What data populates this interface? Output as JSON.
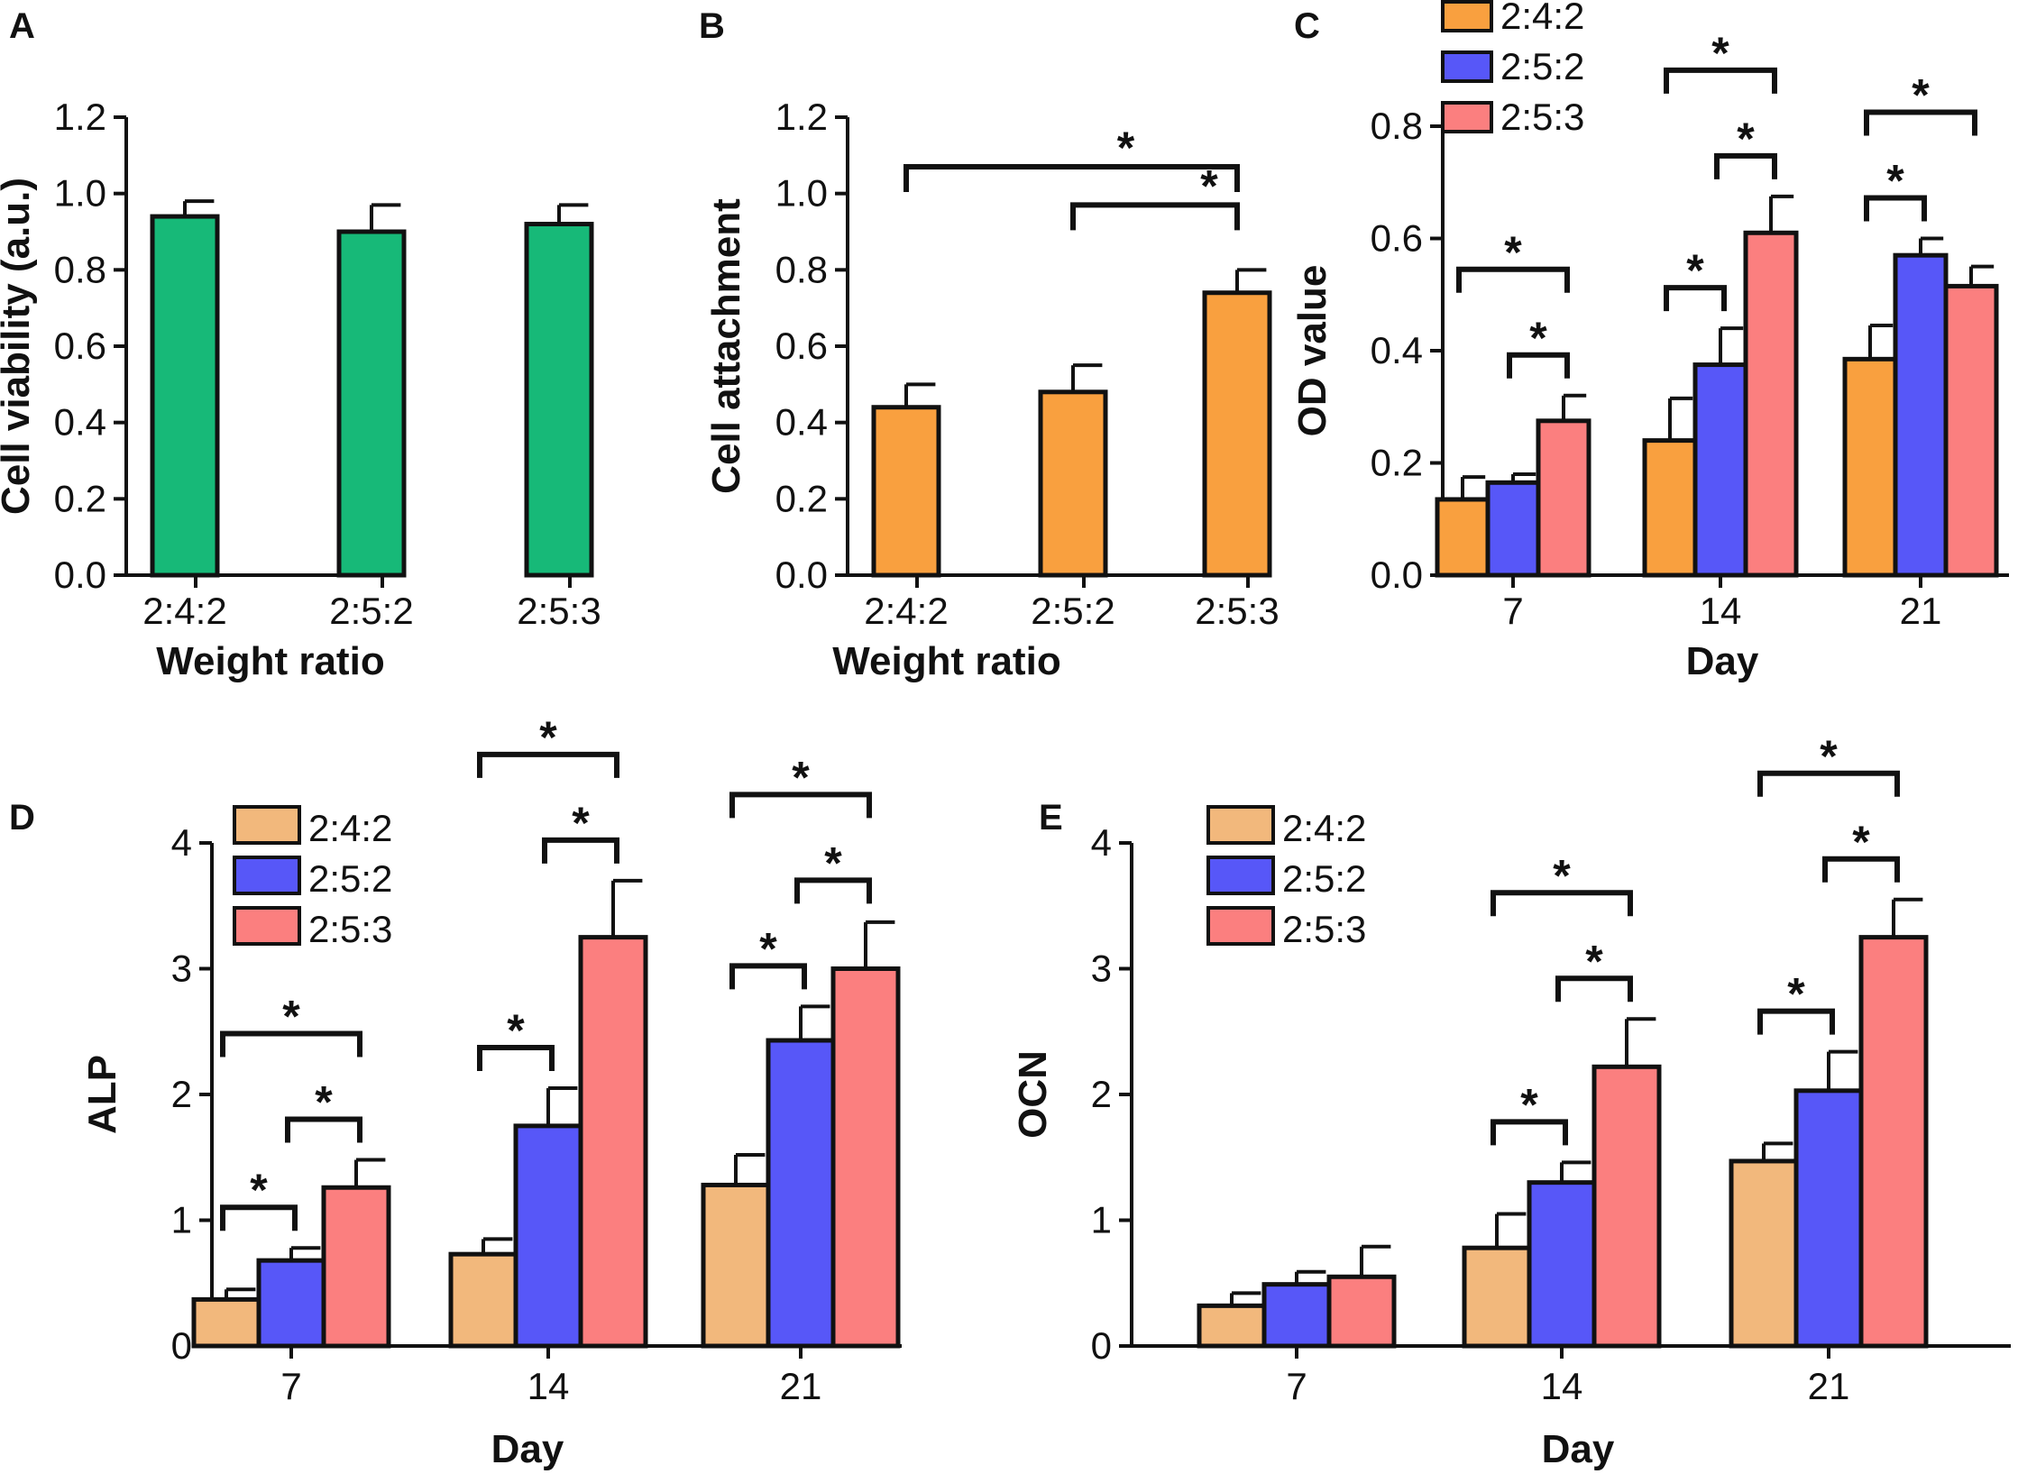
{
  "chart_data": [
    {
      "panel": "A",
      "type": "bar",
      "categories": [
        "2:4:2",
        "2:5:2",
        "2:5:3"
      ],
      "values": [
        0.94,
        0.9,
        0.92
      ],
      "errors": [
        0.04,
        0.07,
        0.05
      ],
      "colors": [
        "#17b978",
        "#17b978",
        "#17b978"
      ],
      "xlabel": "Weight ratio",
      "ylabel": "Cell viability (a.u.)",
      "ylim": [
        0,
        1.2
      ],
      "yticks": [
        "0.0",
        "0.2",
        "0.4",
        "0.6",
        "0.8",
        "1.0",
        "1.2"
      ],
      "significance": []
    },
    {
      "panel": "B",
      "type": "bar",
      "categories": [
        "2:4:2",
        "2:5:2",
        "2:5:3"
      ],
      "values": [
        0.44,
        0.48,
        0.74
      ],
      "errors": [
        0.06,
        0.07,
        0.06
      ],
      "colors": [
        "#f9a03f",
        "#f9a03f",
        "#f9a03f"
      ],
      "xlabel": "Weight ratio",
      "ylabel": "Cell attachment",
      "ylim": [
        0,
        1.2
      ],
      "yticks": [
        "0.0",
        "0.2",
        "0.4",
        "0.6",
        "0.8",
        "1.0",
        "1.2"
      ],
      "significance": [
        {
          "from": 0,
          "to": 2,
          "label": "*"
        },
        {
          "from": 1,
          "to": 2,
          "label": "*"
        }
      ]
    },
    {
      "panel": "C",
      "type": "grouped-bar",
      "categories": [
        "7",
        "14",
        "21"
      ],
      "series": [
        {
          "name": "2:4:2",
          "color": "#f9a03f",
          "values": [
            0.135,
            0.24,
            0.385
          ],
          "errors": [
            0.04,
            0.075,
            0.06
          ]
        },
        {
          "name": "2:5:2",
          "color": "#5757f8",
          "values": [
            0.165,
            0.375,
            0.57
          ],
          "errors": [
            0.015,
            0.065,
            0.03
          ]
        },
        {
          "name": "2:5:3",
          "color": "#fb7f7f",
          "values": [
            0.275,
            0.61,
            0.515
          ],
          "errors": [
            0.045,
            0.065,
            0.035
          ]
        }
      ],
      "xlabel": "Day",
      "ylabel": "OD value",
      "ylim": [
        0,
        0.8
      ],
      "yticks": [
        "0.0",
        "0.2",
        "0.4",
        "0.6",
        "0.8"
      ],
      "legend_position": "top-left",
      "significance": [
        {
          "group": 0,
          "from": 0,
          "to": 2,
          "label": "*"
        },
        {
          "group": 0,
          "from": 1,
          "to": 2,
          "label": "*"
        },
        {
          "group": 1,
          "from": 0,
          "to": 1,
          "label": "*"
        },
        {
          "group": 1,
          "from": 1,
          "to": 2,
          "label": "*"
        },
        {
          "group": 1,
          "from": 0,
          "to": 2,
          "label": "*"
        },
        {
          "group": 2,
          "from": 0,
          "to": 1,
          "label": "*"
        },
        {
          "group": 2,
          "from": 0,
          "to": 2,
          "label": "*"
        }
      ]
    },
    {
      "panel": "D",
      "type": "grouped-bar",
      "categories": [
        "7",
        "14",
        "21"
      ],
      "series": [
        {
          "name": "2:4:2",
          "color": "#f2b87c",
          "values": [
            0.37,
            0.73,
            1.28
          ],
          "errors": [
            0.08,
            0.12,
            0.24
          ]
        },
        {
          "name": "2:5:2",
          "color": "#5757f8",
          "values": [
            0.68,
            1.75,
            2.43
          ],
          "errors": [
            0.1,
            0.3,
            0.27
          ]
        },
        {
          "name": "2:5:3",
          "color": "#fb7f7f",
          "values": [
            1.26,
            3.25,
            3.0
          ],
          "errors": [
            0.22,
            0.45,
            0.37
          ]
        }
      ],
      "xlabel": "Day",
      "ylabel": "ALP",
      "ylim": [
        0,
        4
      ],
      "yticks": [
        "0",
        "1",
        "2",
        "3",
        "4"
      ],
      "legend_position": "top-left",
      "significance": [
        {
          "group": 0,
          "from": 0,
          "to": 1,
          "label": "*"
        },
        {
          "group": 0,
          "from": 1,
          "to": 2,
          "label": "*"
        },
        {
          "group": 0,
          "from": 0,
          "to": 2,
          "label": "*"
        },
        {
          "group": 1,
          "from": 0,
          "to": 1,
          "label": "*"
        },
        {
          "group": 1,
          "from": 1,
          "to": 2,
          "label": "*"
        },
        {
          "group": 1,
          "from": 0,
          "to": 2,
          "label": "*"
        },
        {
          "group": 2,
          "from": 0,
          "to": 1,
          "label": "*"
        },
        {
          "group": 2,
          "from": 1,
          "to": 2,
          "label": "*"
        },
        {
          "group": 2,
          "from": 0,
          "to": 2,
          "label": "*"
        }
      ]
    },
    {
      "panel": "E",
      "type": "grouped-bar",
      "categories": [
        "7",
        "14",
        "21"
      ],
      "series": [
        {
          "name": "2:4:2",
          "color": "#f2b87c",
          "values": [
            0.32,
            0.78,
            1.47
          ],
          "errors": [
            0.1,
            0.27,
            0.14
          ]
        },
        {
          "name": "2:5:2",
          "color": "#5757f8",
          "values": [
            0.49,
            1.3,
            2.03
          ],
          "errors": [
            0.1,
            0.16,
            0.31
          ]
        },
        {
          "name": "2:5:3",
          "color": "#fb7f7f",
          "values": [
            0.55,
            2.22,
            3.25
          ],
          "errors": [
            0.24,
            0.38,
            0.3
          ]
        }
      ],
      "xlabel": "Day",
      "ylabel": "OCN",
      "ylim": [
        0,
        4
      ],
      "yticks": [
        "0",
        "1",
        "2",
        "3",
        "4"
      ],
      "legend_position": "top-left",
      "significance": [
        {
          "group": 1,
          "from": 0,
          "to": 1,
          "label": "*"
        },
        {
          "group": 1,
          "from": 1,
          "to": 2,
          "label": "*"
        },
        {
          "group": 1,
          "from": 0,
          "to": 2,
          "label": "*"
        },
        {
          "group": 2,
          "from": 0,
          "to": 1,
          "label": "*"
        },
        {
          "group": 2,
          "from": 1,
          "to": 2,
          "label": "*"
        },
        {
          "group": 2,
          "from": 0,
          "to": 2,
          "label": "*"
        }
      ]
    }
  ]
}
